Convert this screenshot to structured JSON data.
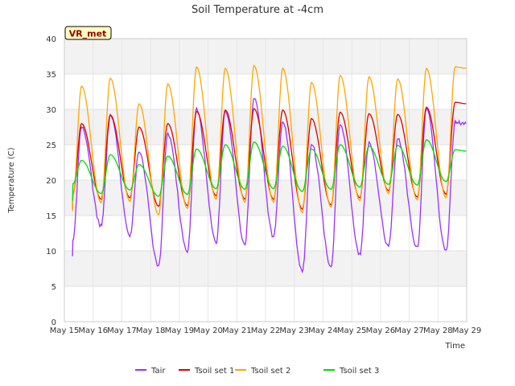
{
  "chart_data": {
    "type": "line",
    "title": "Soil Temperature at -4cm",
    "xlabel": "Time",
    "ylabel": "Temperature (C)",
    "ylim": [
      0,
      40
    ],
    "yticks": [
      0,
      5,
      10,
      15,
      20,
      25,
      30,
      35,
      40
    ],
    "xlim": [
      "May 15",
      "May 29"
    ],
    "xticks": [
      "May 15",
      "May 16",
      "May 17",
      "May 18",
      "May 19",
      "May 20",
      "May 21",
      "May 22",
      "May 23",
      "May 24",
      "May 25",
      "May 26",
      "May 27",
      "May 28",
      "May 29"
    ],
    "grid": true,
    "legend_position": "bottom",
    "annotation": "VR_met",
    "series": [
      {
        "name": "Tair",
        "color": "#9b30ff",
        "x_start_day": 0.3,
        "daily_min": [
          9.5,
          13.5,
          12.3,
          7.8,
          9.8,
          11.2,
          11.0,
          12.0,
          7.2,
          7.8,
          9.5,
          10.6,
          10.4,
          9.9
        ],
        "daily_max": [
          27.5,
          29.2,
          24.0,
          26.6,
          30.0,
          29.8,
          31.6,
          28.3,
          25.2,
          28.0,
          25.2,
          25.8,
          30.1,
          28.2
        ]
      },
      {
        "name": "Tsoil set 1",
        "color": "#dd0000",
        "x_start_day": 0.3,
        "daily_min": [
          15.9,
          17.3,
          17.5,
          16.3,
          16.4,
          17.8,
          17.3,
          17.3,
          15.9,
          16.5,
          17.5,
          18.5,
          17.6,
          18.0
        ],
        "daily_max": [
          28.0,
          29.2,
          27.5,
          28.0,
          29.7,
          29.9,
          30.1,
          29.9,
          28.7,
          29.6,
          29.4,
          29.3,
          30.3,
          31.0
        ]
      },
      {
        "name": "Tsoil set 2",
        "color": "#ffa500",
        "x_start_day": 0.3,
        "daily_min": [
          15.6,
          16.8,
          17.0,
          15.1,
          16.0,
          17.3,
          16.9,
          16.9,
          15.4,
          16.2,
          17.1,
          18.1,
          17.2,
          17.5
        ],
        "daily_max": [
          33.3,
          34.4,
          30.8,
          33.6,
          36.0,
          35.8,
          36.2,
          35.8,
          33.8,
          34.8,
          34.6,
          34.3,
          35.8,
          36.0
        ]
      },
      {
        "name": "Tsoil set 3",
        "color": "#00dd00",
        "x_start_day": 0.3,
        "first_value": 19.5,
        "daily_min": [
          17.1,
          18.1,
          18.6,
          17.7,
          18.0,
          18.8,
          18.7,
          18.8,
          18.4,
          18.7,
          19.0,
          19.4,
          19.3,
          19.8
        ],
        "daily_max": [
          22.8,
          23.6,
          22.2,
          23.4,
          24.4,
          25.0,
          25.4,
          24.8,
          24.4,
          25.0,
          24.8,
          24.9,
          25.7,
          24.3
        ]
      }
    ]
  }
}
